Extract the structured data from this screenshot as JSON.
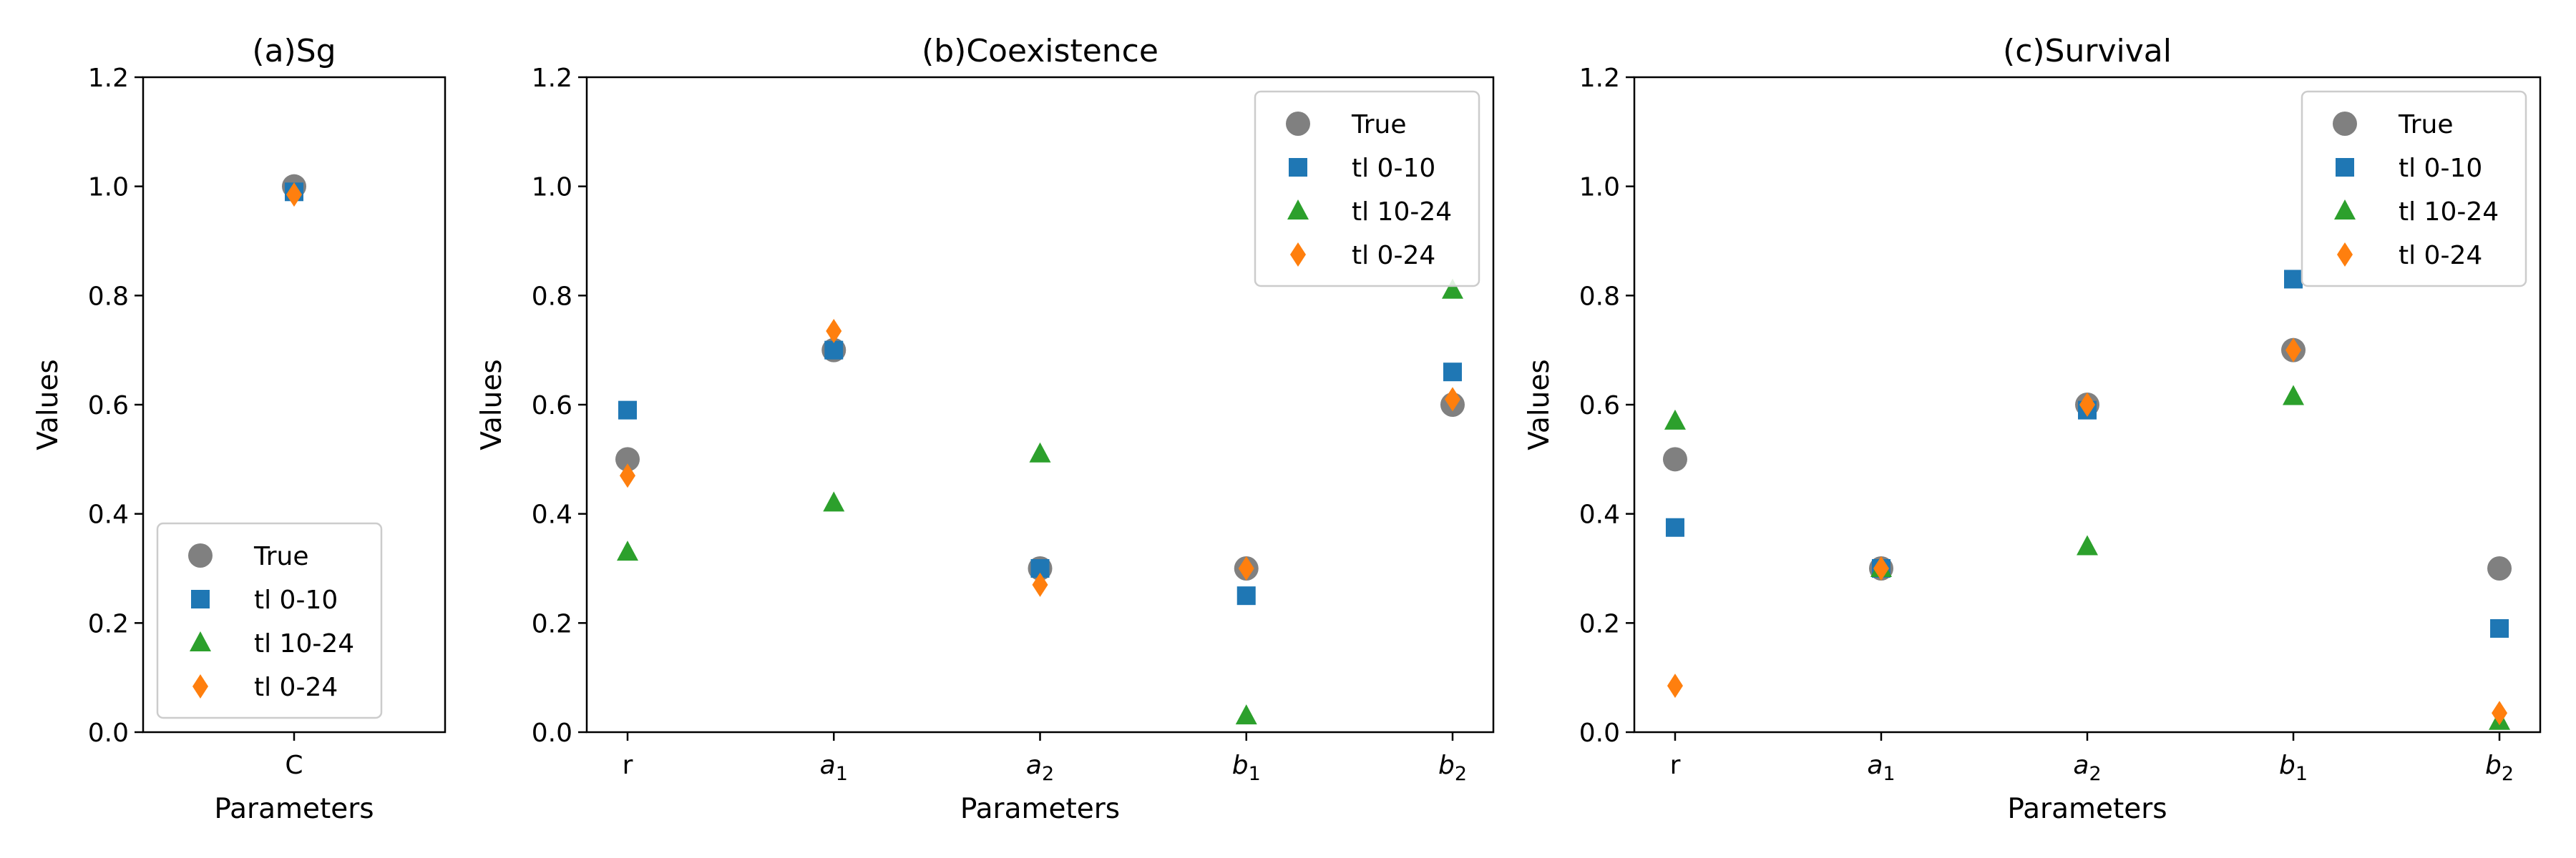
{
  "chart_data": [
    {
      "type": "scatter",
      "title": "(a)Sg",
      "xlabel": "Parameters",
      "ylabel": "Values",
      "categories": [
        "C"
      ],
      "ylim": [
        0,
        1.2
      ],
      "yticks": [
        "0.0",
        "0.2",
        "0.4",
        "0.6",
        "0.8",
        "1.0",
        "1.2"
      ],
      "legend_position": "lower-left",
      "series": [
        {
          "name": "True",
          "values": [
            1.0
          ]
        },
        {
          "name": "tl 0-10",
          "values": [
            0.99
          ]
        },
        {
          "name": "tl 10-24",
          "values": [
            null
          ]
        },
        {
          "name": "tl 0-24",
          "values": [
            0.985
          ]
        }
      ]
    },
    {
      "type": "scatter",
      "title": "(b)Coexistence",
      "xlabel": "Parameters",
      "ylabel": "Values",
      "categories": [
        "r",
        "a1",
        "a2",
        "b1",
        "b2"
      ],
      "ylim": [
        0,
        1.2
      ],
      "yticks": [
        "0.0",
        "0.2",
        "0.4",
        "0.6",
        "0.8",
        "1.0",
        "1.2"
      ],
      "legend_position": "upper-right",
      "series": [
        {
          "name": "True",
          "values": [
            0.5,
            0.7,
            0.3,
            0.3,
            0.6
          ]
        },
        {
          "name": "tl 0-10",
          "values": [
            0.59,
            0.7,
            0.3,
            0.25,
            0.66
          ]
        },
        {
          "name": "tl 10-24",
          "values": [
            0.33,
            0.42,
            0.51,
            0.03,
            0.81
          ]
        },
        {
          "name": "tl 0-24",
          "values": [
            0.47,
            0.735,
            0.27,
            0.3,
            0.61
          ]
        }
      ]
    },
    {
      "type": "scatter",
      "title": "(c)Survival",
      "xlabel": "Parameters",
      "ylabel": "Values",
      "categories": [
        "r",
        "a1",
        "a2",
        "b1",
        "b2"
      ],
      "ylim": [
        0,
        1.2
      ],
      "yticks": [
        "0.0",
        "0.2",
        "0.4",
        "0.6",
        "0.8",
        "1.0",
        "1.2"
      ],
      "legend_position": "upper-right",
      "series": [
        {
          "name": "True",
          "values": [
            0.5,
            0.3,
            0.6,
            0.7,
            0.3
          ]
        },
        {
          "name": "tl 0-10",
          "values": [
            0.375,
            0.3,
            0.59,
            0.83,
            0.19
          ]
        },
        {
          "name": "tl 10-24",
          "values": [
            0.57,
            0.3,
            0.34,
            0.615,
            0.02
          ]
        },
        {
          "name": "tl 0-24",
          "values": [
            0.085,
            0.3,
            0.6,
            0.7,
            0.035
          ]
        }
      ]
    }
  ],
  "colors": {
    "True": "#808080",
    "tl 0-10": "#1f77b4",
    "tl 10-24": "#2ca02c",
    "tl 0-24": "#ff7f0e"
  },
  "markers": {
    "True": "circle",
    "tl 0-10": "square",
    "tl 10-24": "triangle",
    "tl 0-24": "diamond"
  }
}
